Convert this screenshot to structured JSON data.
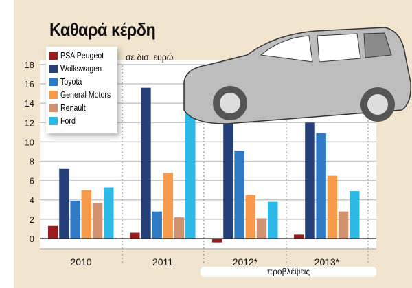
{
  "chart_data": {
    "type": "bar",
    "title": "Καθαρά κέρδη",
    "ylabel": "σε δισ. ευρώ",
    "xlabel": "",
    "ylim": [
      -1,
      18
    ],
    "yticks": [
      0,
      2,
      4,
      6,
      8,
      10,
      12,
      14,
      16,
      18
    ],
    "categories": [
      "2010",
      "2011",
      "2012*",
      "2013*"
    ],
    "annotation": "προβλέψεις",
    "legend_position": "top-left",
    "grid": true,
    "series": [
      {
        "name": "PSA Peugeot",
        "color": "#9b1c1f",
        "values": [
          1.3,
          0.6,
          -0.4,
          0.4
        ]
      },
      {
        "name": "Wolkswagen",
        "color": "#253f78",
        "values": [
          7.2,
          15.6,
          17.2,
          12.0
        ]
      },
      {
        "name": "Toyota",
        "color": "#2f7ac4",
        "values": [
          3.9,
          2.8,
          9.1,
          10.9
        ]
      },
      {
        "name": "General Motors",
        "color": "#f79a4c",
        "values": [
          5.0,
          6.8,
          4.5,
          6.5
        ]
      },
      {
        "name": "Renault",
        "color": "#cf9170",
        "values": [
          3.7,
          2.2,
          2.1,
          2.8
        ]
      },
      {
        "name": "Ford",
        "color": "#2cb9e8",
        "values": [
          5.3,
          14.7,
          3.8,
          4.9
        ]
      }
    ]
  }
}
